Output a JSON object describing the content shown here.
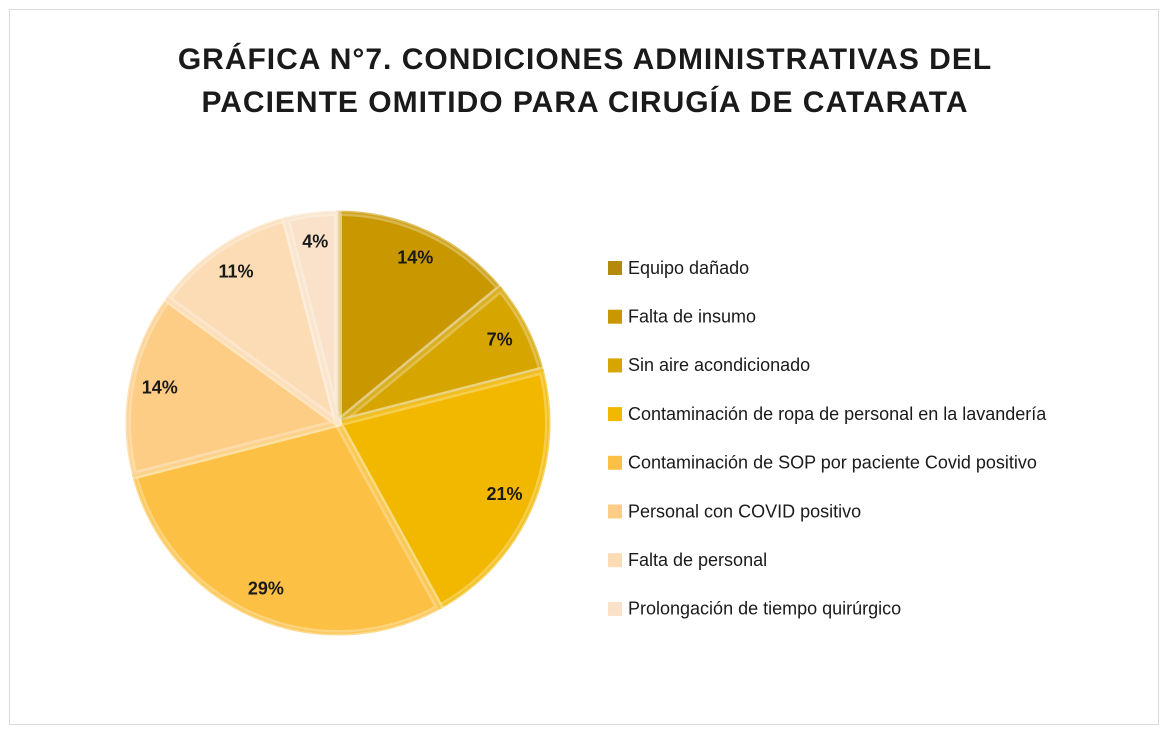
{
  "chart_data": {
    "type": "pie",
    "title": "GRÁFICA N°7. CONDICIONES ADMINISTRATIVAS DEL PACIENTE OMITIDO PARA CIRUGÍA DE CATARATA",
    "categories": [
      "Equipo dañado",
      "Falta de insumo",
      "Sin aire acondicionado",
      "Contaminación de ropa de personal en la lavandería",
      "Contaminación de SOP por paciente Covid positivo",
      "Personal con COVID positivo",
      "Falta de personal",
      "Prolongación de tiempo quirúrgico"
    ],
    "values": [
      0,
      14,
      7,
      21,
      29,
      14,
      11,
      4
    ],
    "value_labels": [
      "0%",
      "14%",
      "7%",
      "21%",
      "29%",
      "14%",
      "11%",
      "4%"
    ],
    "colors": [
      "#b38a0a",
      "#c99800",
      "#d6a500",
      "#f2b800",
      "#fcc144",
      "#fdcd86",
      "#fcdcb5",
      "#f9e2c9"
    ],
    "legend": "right"
  }
}
